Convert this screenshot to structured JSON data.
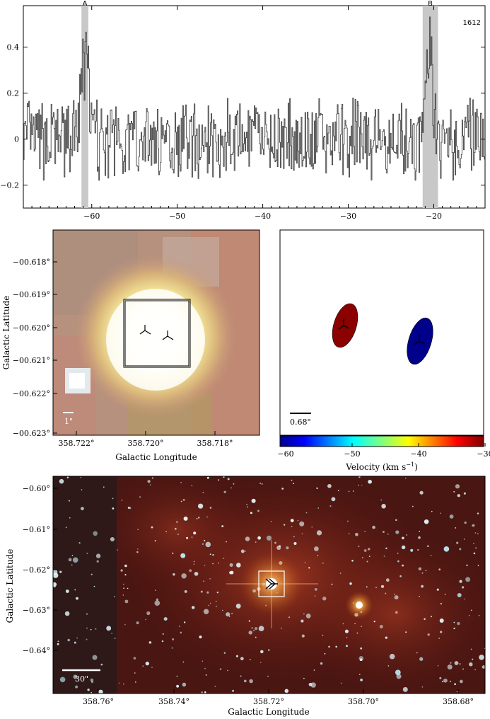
{
  "spectrum": {
    "label": "1612",
    "markers": [
      "A",
      "B"
    ],
    "chart_data": {
      "type": "line",
      "xlim": [
        -68,
        -14
      ],
      "ylim": [
        -0.3,
        0.58
      ],
      "x_ticks": [
        -60,
        -50,
        -40,
        -30,
        -20
      ],
      "y_ticks": [
        -0.2,
        0,
        0.2,
        0.4
      ],
      "x_tick_labels": [
        "−60",
        "−50",
        "−40",
        "−30",
        "−20"
      ],
      "y_tick_labels": [
        "−0.2",
        "0",
        "0.2",
        "0.4"
      ],
      "highlight_bands": [
        {
          "label": "A",
          "x": [
            -61.2,
            -60.4
          ]
        },
        {
          "label": "B",
          "x": [
            -21.3,
            -19.5
          ]
        }
      ],
      "features": [
        {
          "x": -60.8,
          "peak": 0.42
        },
        {
          "x": -20.6,
          "peak": 0.4
        }
      ]
    }
  },
  "ir_zoom": {
    "xlabel": "Galactic Longitude",
    "ylabel": "Galactic Latitude",
    "x_tick_labels": [
      "358.722°",
      "358.720°",
      "358.718°"
    ],
    "y_tick_labels": [
      "−00.618°",
      "−00.619°",
      "−00.620°",
      "−00.621°",
      "−00.622°",
      "−00.623°"
    ],
    "scale_label": "1\""
  },
  "velocity_map": {
    "scale_label": "0.68\"",
    "colorbar_label": "Velocity (km s",
    "colorbar_label_exp": "−1",
    "colorbar_label_end": ")",
    "colorbar_ticks": [
      "−60",
      "−50",
      "−40",
      "−30"
    ],
    "colors": {
      "red_source": "#8b0000",
      "blue_source": "#00008b"
    }
  },
  "wide_field": {
    "xlabel": "Galactic Longitude",
    "ylabel": "Galactic Latitude",
    "x_tick_labels": [
      "358.76°",
      "358.74°",
      "358.72°",
      "358.70°",
      "358.68°"
    ],
    "y_tick_labels": [
      "−0.60°",
      "−0.61°",
      "−0.62°",
      "−0.63°",
      "−0.64°"
    ],
    "scale_label": "30\""
  }
}
